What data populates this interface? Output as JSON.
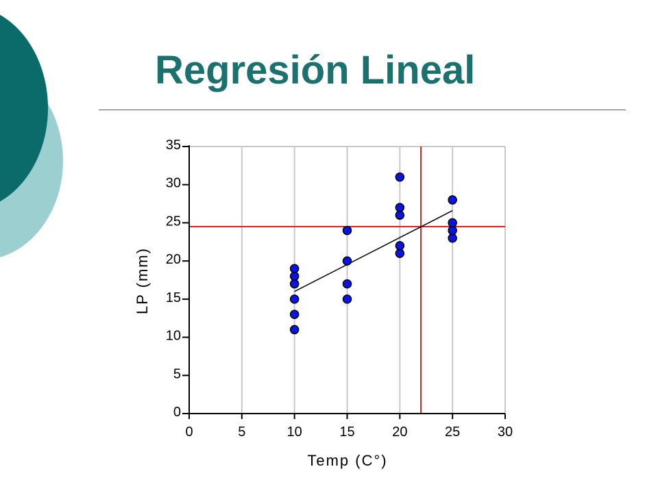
{
  "slide": {
    "title": "Regresión Lineal",
    "colors": {
      "title": "#1a716e",
      "deco_dark": "#0b6b6a",
      "deco_light": "#9ccfd0"
    }
  },
  "chart_data": {
    "type": "scatter",
    "xlabel": "Temp (C°)",
    "ylabel": "LP (mm)",
    "xlim": [
      0,
      30
    ],
    "ylim": [
      0,
      35
    ],
    "xticks": [
      0,
      5,
      10,
      15,
      20,
      25,
      30
    ],
    "yticks": [
      0,
      5,
      10,
      15,
      20,
      25,
      30,
      35
    ],
    "grid": "vertical",
    "points": [
      {
        "x": 10,
        "y": 11
      },
      {
        "x": 10,
        "y": 13
      },
      {
        "x": 10,
        "y": 15
      },
      {
        "x": 10,
        "y": 17
      },
      {
        "x": 10,
        "y": 18
      },
      {
        "x": 10,
        "y": 19
      },
      {
        "x": 15,
        "y": 15
      },
      {
        "x": 15,
        "y": 17
      },
      {
        "x": 15,
        "y": 20
      },
      {
        "x": 15,
        "y": 24
      },
      {
        "x": 20,
        "y": 21
      },
      {
        "x": 20,
        "y": 22
      },
      {
        "x": 20,
        "y": 26
      },
      {
        "x": 20,
        "y": 27
      },
      {
        "x": 20,
        "y": 31
      },
      {
        "x": 25,
        "y": 23
      },
      {
        "x": 25,
        "y": 24
      },
      {
        "x": 25,
        "y": 25
      },
      {
        "x": 25,
        "y": 28
      }
    ],
    "regression_line": {
      "x": [
        10,
        25
      ],
      "y": [
        16,
        26.6
      ]
    },
    "reference_lines": {
      "vertical_x": 22,
      "horizontal_y": 24.5
    },
    "colors": {
      "points": "#0a14e6",
      "point_outline": "#000000",
      "regression": "#000000",
      "reference": "#d42020",
      "grid": "#c8c8c8",
      "axis": "#000000"
    }
  }
}
